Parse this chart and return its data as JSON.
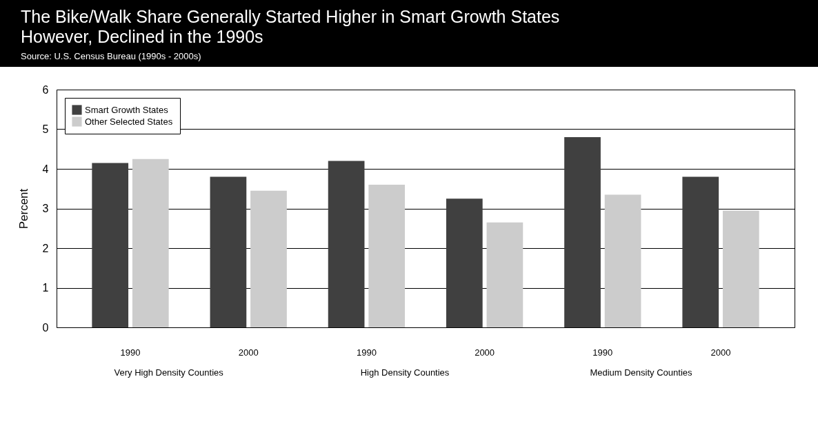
{
  "chart_data": {
    "type": "bar",
    "title": "The Bike/Walk Share Generally Started Higher in Smart Growth States\nHowever, Declined in the 1990s",
    "subtitle": "Source: U.S. Census Bureau (1990s - 2000s)",
    "ylabel": "Percent",
    "categories": [
      "1990",
      "2000",
      "1990",
      "2000",
      "1990",
      "2000"
    ],
    "series": [
      {
        "name": "Smart Growth States",
        "color": "#404040",
        "values": [
          4.15,
          3.8,
          4.2,
          3.25,
          4.8,
          3.8
        ]
      },
      {
        "name": "Other Selected States",
        "color": "#cccccc",
        "values": [
          4.25,
          3.45,
          3.6,
          2.65,
          3.35,
          2.95
        ]
      }
    ],
    "annotations": [
      "Very High Density Counties",
      "High Density Counties",
      "Medium Density Counties"
    ],
    "ylim": [
      0,
      6
    ],
    "yticks": [
      0,
      1,
      2,
      3,
      4,
      5,
      6
    ],
    "grid": "y",
    "legend": "top left"
  }
}
